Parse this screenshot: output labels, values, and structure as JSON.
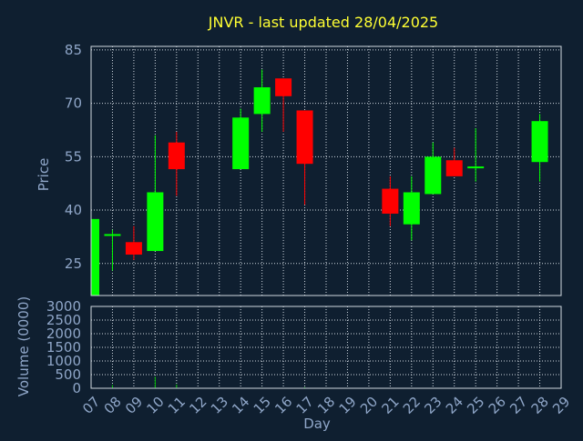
{
  "chart_data": [
    {
      "type": "candlestick",
      "title": "JNVR - last updated 28/04/2025",
      "ylabel": "Price",
      "xlabel": "Day",
      "ylim": [
        16,
        86
      ],
      "yticks": [
        25,
        40,
        55,
        70,
        85
      ],
      "grid": true,
      "colors": {
        "up": "#00ff00",
        "down": "#ff0000",
        "title": "#ffff33",
        "axis_text": "#8fa6c8",
        "grid": "#d0d8e0",
        "background": "#0f1f30"
      },
      "x_ticks": [
        "07",
        "08",
        "09",
        "10",
        "11",
        "12",
        "13",
        "14",
        "15",
        "16",
        "17",
        "18",
        "19",
        "20",
        "21",
        "22",
        "23",
        "24",
        "25",
        "26",
        "27",
        "28",
        "29"
      ],
      "candles": [
        {
          "day": 7,
          "open": 15.0,
          "high": 38.0,
          "low": 15.0,
          "close": 37.5
        },
        {
          "day": 8,
          "open": 32.5,
          "high": 34.5,
          "low": 23.0,
          "close": 33.0
        },
        {
          "day": 9,
          "open": 31.0,
          "high": 35.5,
          "low": 26.0,
          "close": 27.5
        },
        {
          "day": 10,
          "open": 28.5,
          "high": 61.0,
          "low": 28.5,
          "close": 45.0
        },
        {
          "day": 11,
          "open": 59.0,
          "high": 62.0,
          "low": 44.0,
          "close": 51.5
        },
        {
          "day": 14,
          "open": 51.5,
          "high": 68.5,
          "low": 51.5,
          "close": 66.0
        },
        {
          "day": 15,
          "open": 67.0,
          "high": 79.5,
          "low": 62.0,
          "close": 74.5
        },
        {
          "day": 16,
          "open": 77.0,
          "high": 77.0,
          "low": 62.0,
          "close": 72.0
        },
        {
          "day": 17,
          "open": 68.0,
          "high": 68.0,
          "low": 41.5,
          "close": 53.0
        },
        {
          "day": 21,
          "open": 46.0,
          "high": 49.5,
          "low": 35.5,
          "close": 39.0
        },
        {
          "day": 22,
          "open": 36.0,
          "high": 49.5,
          "low": 31.5,
          "close": 45.0
        },
        {
          "day": 23,
          "open": 44.5,
          "high": 59.0,
          "low": 44.5,
          "close": 55.0
        },
        {
          "day": 24,
          "open": 54.0,
          "high": 57.5,
          "low": 49.5,
          "close": 49.5
        },
        {
          "day": 25,
          "open": 52.0,
          "high": 63.0,
          "low": 48.0,
          "close": 52.0
        },
        {
          "day": 28,
          "open": 53.5,
          "high": 67.0,
          "low": 48.0,
          "close": 65.0
        }
      ]
    },
    {
      "type": "bar",
      "ylabel": "Volume (0000)",
      "xlabel": "Day",
      "ylim": [
        0,
        3000
      ],
      "yticks": [
        0,
        500,
        1000,
        1500,
        2000,
        2500,
        3000
      ],
      "grid": true,
      "series": [
        {
          "x": [
            7,
            8,
            9,
            10,
            11,
            14,
            15,
            16,
            17,
            21,
            22,
            23,
            24,
            25,
            28
          ],
          "values": [
            5,
            120,
            10,
            420,
            140,
            10,
            20,
            10,
            40,
            10,
            10,
            10,
            5,
            5,
            15
          ]
        }
      ]
    }
  ]
}
